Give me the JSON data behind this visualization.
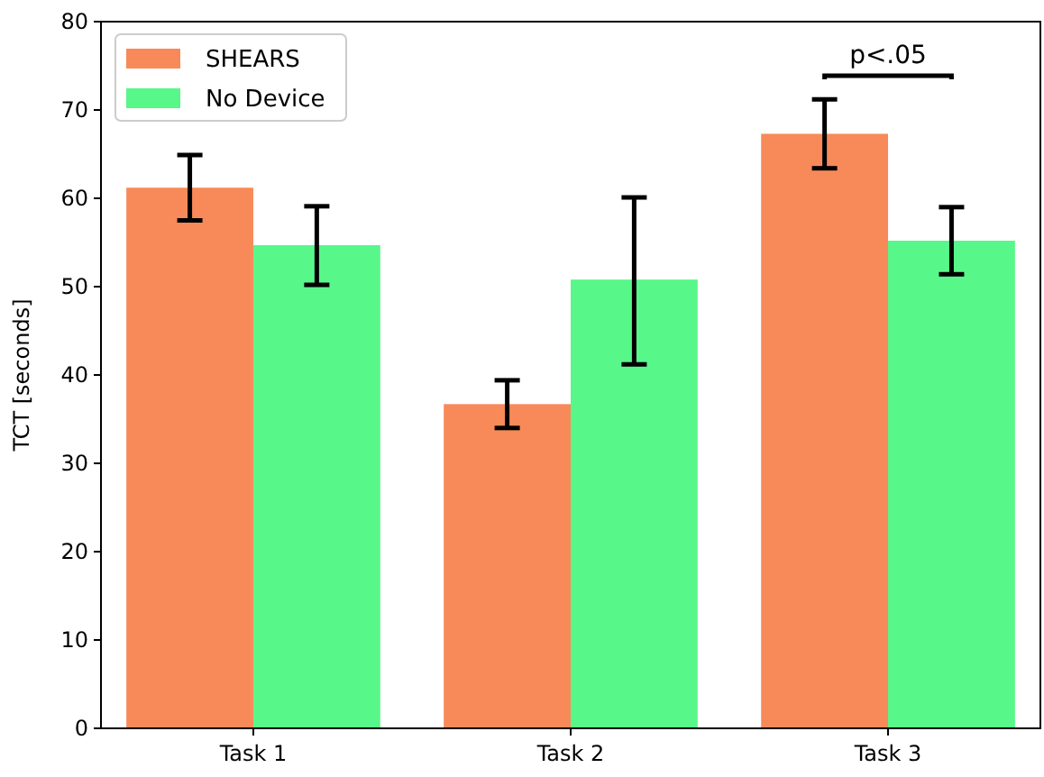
{
  "chart_data": {
    "type": "bar",
    "ylabel": "TCT [seconds]",
    "categories": [
      "Task 1",
      "Task 2",
      "Task 3"
    ],
    "series": [
      {
        "name": "SHEARS",
        "color": "#f78a58",
        "values": [
          61.2,
          36.7,
          67.3
        ],
        "errors": [
          [
            57.5,
            64.9
          ],
          [
            34.0,
            39.4
          ],
          [
            63.4,
            71.2
          ]
        ]
      },
      {
        "name": "No Device",
        "color": "#58f78a",
        "values": [
          54.7,
          50.8,
          55.2
        ],
        "errors": [
          [
            50.2,
            59.1
          ],
          [
            41.2,
            60.1
          ],
          [
            51.4,
            59.0
          ]
        ]
      }
    ],
    "ylim": [
      0,
      80
    ],
    "yticks": [
      0,
      10,
      20,
      30,
      40,
      50,
      60,
      70,
      80
    ],
    "grid": false,
    "legend": "top left",
    "annotations": [
      "p<.05"
    ]
  }
}
